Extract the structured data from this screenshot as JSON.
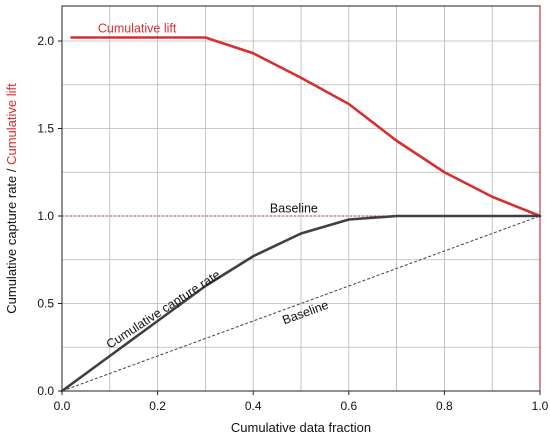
{
  "chart_data": {
    "type": "line",
    "xlabel": "Cumulative data fraction",
    "ylabel_part1": "Cumulative capture rate",
    "ylabel_sep": " / ",
    "ylabel_part2": "Cumulative lift",
    "xlim": [
      0.0,
      1.0
    ],
    "ylim": [
      0.0,
      2.2
    ],
    "x_ticks": [
      "0.0",
      "0.2",
      "0.4",
      "0.6",
      "0.8",
      "1.0"
    ],
    "y_ticks": [
      "0.0",
      "0.5",
      "1.0",
      "1.5",
      "2.0"
    ],
    "grid": true,
    "series": [
      {
        "name": "Cumulative lift",
        "color": "#d62f2f",
        "x": [
          0.02,
          0.3,
          0.4,
          0.5,
          0.6,
          0.7,
          0.8,
          0.9,
          1.0
        ],
        "y": [
          2.02,
          2.02,
          1.93,
          1.79,
          1.64,
          1.43,
          1.25,
          1.11,
          1.0
        ]
      },
      {
        "name": "Cumulative capture rate",
        "color": "#404040",
        "x": [
          0.0,
          0.1,
          0.2,
          0.3,
          0.4,
          0.5,
          0.6,
          0.7,
          0.8,
          0.9,
          1.0
        ],
        "y": [
          0.0,
          0.2,
          0.4,
          0.6,
          0.77,
          0.9,
          0.98,
          1.0,
          1.0,
          1.0,
          1.0
        ]
      }
    ],
    "reference_lines": [
      {
        "label": "Baseline",
        "color": "#d62f2f",
        "x": [
          0.0,
          1.0
        ],
        "y": [
          1.0,
          1.0
        ]
      },
      {
        "label": "Baseline",
        "color": "#404040",
        "x": [
          0.0,
          1.0
        ],
        "y": [
          0.0,
          1.0
        ]
      }
    ],
    "annotations": {
      "lift_label": "Cumulative lift",
      "capture_label": "Cumulative capture rate",
      "baseline_top": "Baseline",
      "baseline_diag": "Baseline"
    }
  }
}
